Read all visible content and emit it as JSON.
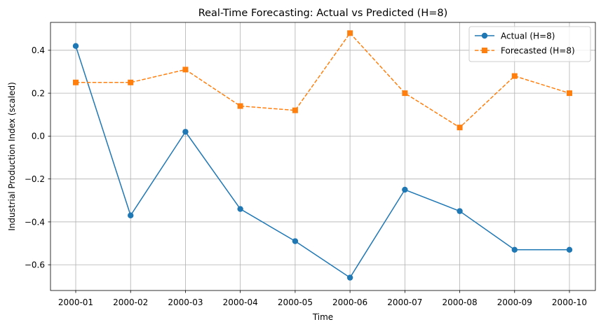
{
  "chart_data": {
    "type": "line",
    "title": "Real-Time Forecasting: Actual vs Predicted (H=8)",
    "xlabel": "Time",
    "ylabel": "Industrial Production Index (scaled)",
    "categories": [
      "2000-01",
      "2000-02",
      "2000-03",
      "2000-04",
      "2000-05",
      "2000-06",
      "2000-07",
      "2000-08",
      "2000-09",
      "2000-10"
    ],
    "ylim": [
      -0.72,
      0.53
    ],
    "yticks": [
      -0.6,
      -0.4,
      -0.2,
      0.0,
      0.2,
      0.4
    ],
    "ytick_labels": [
      "−0.6",
      "−0.4",
      "−0.2",
      "0.0",
      "0.2",
      "0.4"
    ],
    "grid": true,
    "legend_position": "top-right",
    "series": [
      {
        "name": "Actual (H=8)",
        "color": "#1f77b4",
        "line_style": "solid",
        "marker": "circle",
        "values": [
          0.42,
          -0.37,
          0.02,
          -0.34,
          -0.49,
          -0.66,
          -0.25,
          -0.35,
          -0.53,
          -0.53
        ]
      },
      {
        "name": "Forecasted (H=8)",
        "color": "#ff7f0e",
        "line_style": "dashed",
        "marker": "square",
        "values": [
          0.25,
          0.25,
          0.31,
          0.14,
          0.12,
          0.48,
          0.2,
          0.04,
          0.28,
          0.2
        ]
      }
    ]
  }
}
